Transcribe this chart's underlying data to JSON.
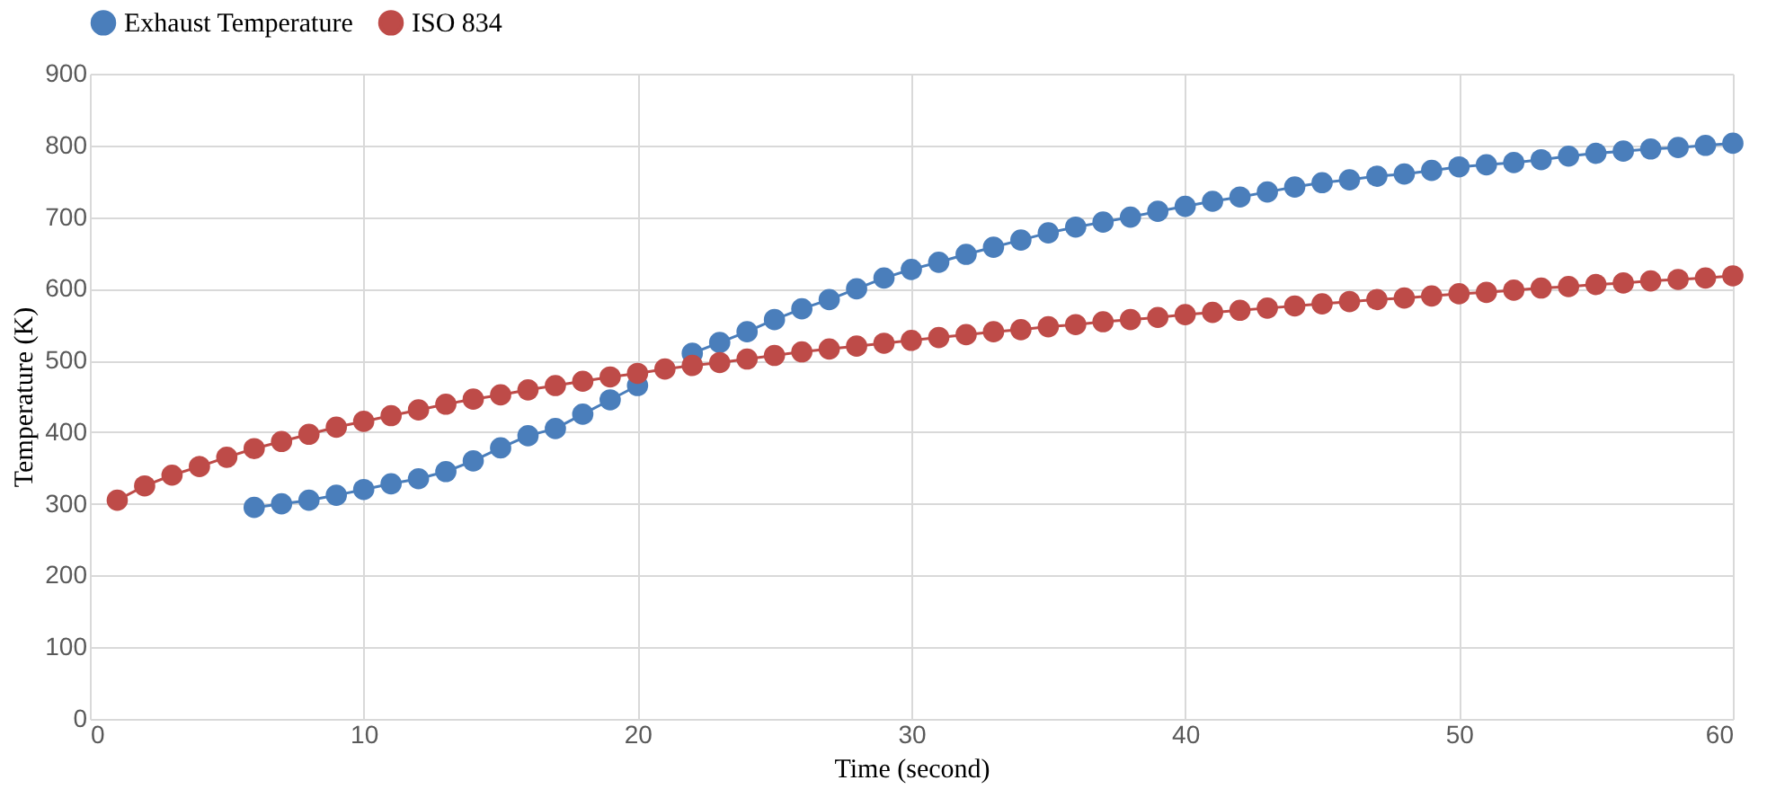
{
  "chart_data": {
    "type": "line",
    "xlabel": "Time (second)",
    "ylabel": "Temperature (K)",
    "xlim": [
      0,
      60
    ],
    "xticks": [
      0,
      10,
      20,
      30,
      40,
      50,
      60
    ],
    "ylim": [
      0,
      900
    ],
    "yticks": [
      0,
      100,
      200,
      300,
      400,
      500,
      600,
      700,
      800,
      900
    ],
    "grid": true,
    "legend": "top",
    "marker": "circle",
    "line_style": "solid",
    "series": [
      {
        "name": "Exhaust Temperature",
        "color": "#4a7ebb",
        "x": [
          6,
          7,
          8,
          9,
          10,
          11,
          12,
          13,
          14,
          15,
          16,
          17,
          18,
          19,
          20,
          21,
          22,
          23,
          24,
          25,
          26,
          27,
          28,
          29,
          30,
          31,
          32,
          33,
          34,
          35,
          36,
          37,
          38,
          39,
          40,
          41,
          42,
          43,
          44,
          45,
          46,
          47,
          48,
          49,
          50,
          51,
          52,
          53,
          54,
          55,
          56,
          57,
          58,
          59,
          60
        ],
        "values": [
          295,
          300,
          305,
          312,
          320,
          328,
          335,
          345,
          360,
          378,
          395,
          405,
          425,
          445,
          465,
          null,
          510,
          525,
          540,
          557,
          572,
          585,
          600,
          615,
          627,
          637,
          648,
          658,
          668,
          678,
          686,
          693,
          700,
          708,
          715,
          722,
          728,
          735,
          742,
          748,
          752,
          757,
          760,
          765,
          770,
          773,
          776,
          780,
          785,
          789,
          792,
          795,
          797,
          800,
          803
        ]
      },
      {
        "name": "ISO 834",
        "color": "#be4b48",
        "x": [
          1,
          2,
          3,
          4,
          5,
          6,
          7,
          8,
          9,
          10,
          11,
          12,
          13,
          14,
          15,
          16,
          17,
          18,
          19,
          20,
          21,
          22,
          23,
          24,
          25,
          26,
          27,
          28,
          29,
          30,
          31,
          32,
          33,
          34,
          35,
          36,
          37,
          38,
          39,
          40,
          41,
          42,
          43,
          44,
          45,
          46,
          47,
          48,
          49,
          50,
          51,
          52,
          53,
          54,
          55,
          56,
          57,
          58,
          59,
          60
        ],
        "values": [
          305,
          325,
          340,
          352,
          365,
          377,
          387,
          397,
          407,
          415,
          423,
          431,
          439,
          446,
          452,
          459,
          465,
          471,
          477,
          482,
          488,
          493,
          497,
          502,
          507,
          512,
          516,
          520,
          524,
          528,
          532,
          536,
          540,
          543,
          547,
          550,
          554,
          557,
          560,
          564,
          567,
          570,
          573,
          576,
          579,
          582,
          585,
          587,
          590,
          593,
          595,
          598,
          601,
          603,
          606,
          608,
          611,
          613,
          615,
          618
        ]
      }
    ]
  }
}
